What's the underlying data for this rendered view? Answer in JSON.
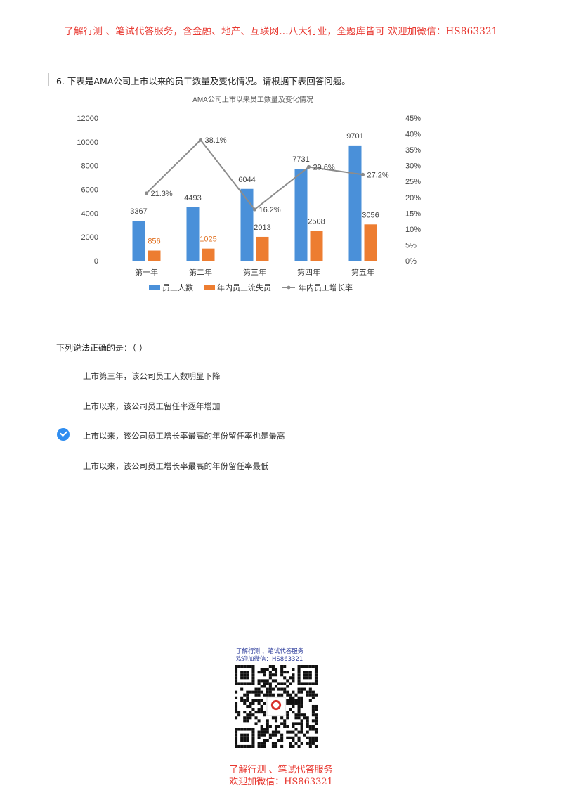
{
  "banner": "了解行测 、笔试代答服务，含金融、地产、互联网...八大行业，全题库皆可 欢迎加微信：HS863321",
  "question": {
    "title": "6.  下表是AMA公司上市以来的员工数量及变化情况。请根据下表回答问题。",
    "stem": "下列说法正确的是：（ ）",
    "options": [
      {
        "text": "上市第三年，该公司员工人数明显下降",
        "selected": false
      },
      {
        "text": "上市以来，该公司员工留任率逐年增加",
        "selected": false
      },
      {
        "text": "上市以来，该公司员工增长率最高的年份留任率也是最高",
        "selected": true
      },
      {
        "text": "上市以来，该公司员工增长率最高的年份留任率最低",
        "selected": false
      }
    ]
  },
  "chart_data": {
    "type": "bar",
    "title": "AMA公司上市以来员工数量及变化情况",
    "categories": [
      "第一年",
      "第二年",
      "第三年",
      "第四年",
      "第五年"
    ],
    "series": [
      {
        "name": "员工人数",
        "type": "bar",
        "axis": "left",
        "color": "#4a90d9",
        "values": [
          3367,
          4493,
          6044,
          7731,
          9701
        ],
        "labels": [
          "3367",
          "4493",
          "6044",
          "7731",
          "9701"
        ]
      },
      {
        "name": "年内员工流失员",
        "type": "bar",
        "axis": "left",
        "color": "#ed7d31",
        "values": [
          856,
          1025,
          2013,
          2508,
          3056
        ],
        "labels": [
          "856",
          "1025",
          "2013",
          "2508",
          "3056"
        ]
      },
      {
        "name": "年内员工增长率",
        "type": "line",
        "axis": "right",
        "color": "#8c8c8c",
        "values": [
          21.3,
          38.1,
          16.2,
          29.6,
          27.2
        ],
        "labels": [
          "21.3%",
          "38.1%",
          "16.2%",
          "29.6%",
          "27.2%"
        ]
      }
    ],
    "ylim_left": [
      0,
      12000
    ],
    "yticks_left": [
      "0",
      "2000",
      "4000",
      "6000",
      "8000",
      "10000",
      "12000"
    ],
    "ylim_right": [
      0,
      45
    ],
    "yticks_right": [
      "0%",
      "5%",
      "10%",
      "15%",
      "20%",
      "25%",
      "30%",
      "35%",
      "40%",
      "45%"
    ],
    "legend_position": "bottom"
  },
  "qr": {
    "caption_line1": "了解行测 、笔试代答服务",
    "caption_line2": "欢迎加微信：HS863321",
    "logo_icon": "qr-code-icon"
  },
  "footer": {
    "line1": "了解行测 、笔试代答服务",
    "line2": "欢迎加微信：HS863321"
  }
}
